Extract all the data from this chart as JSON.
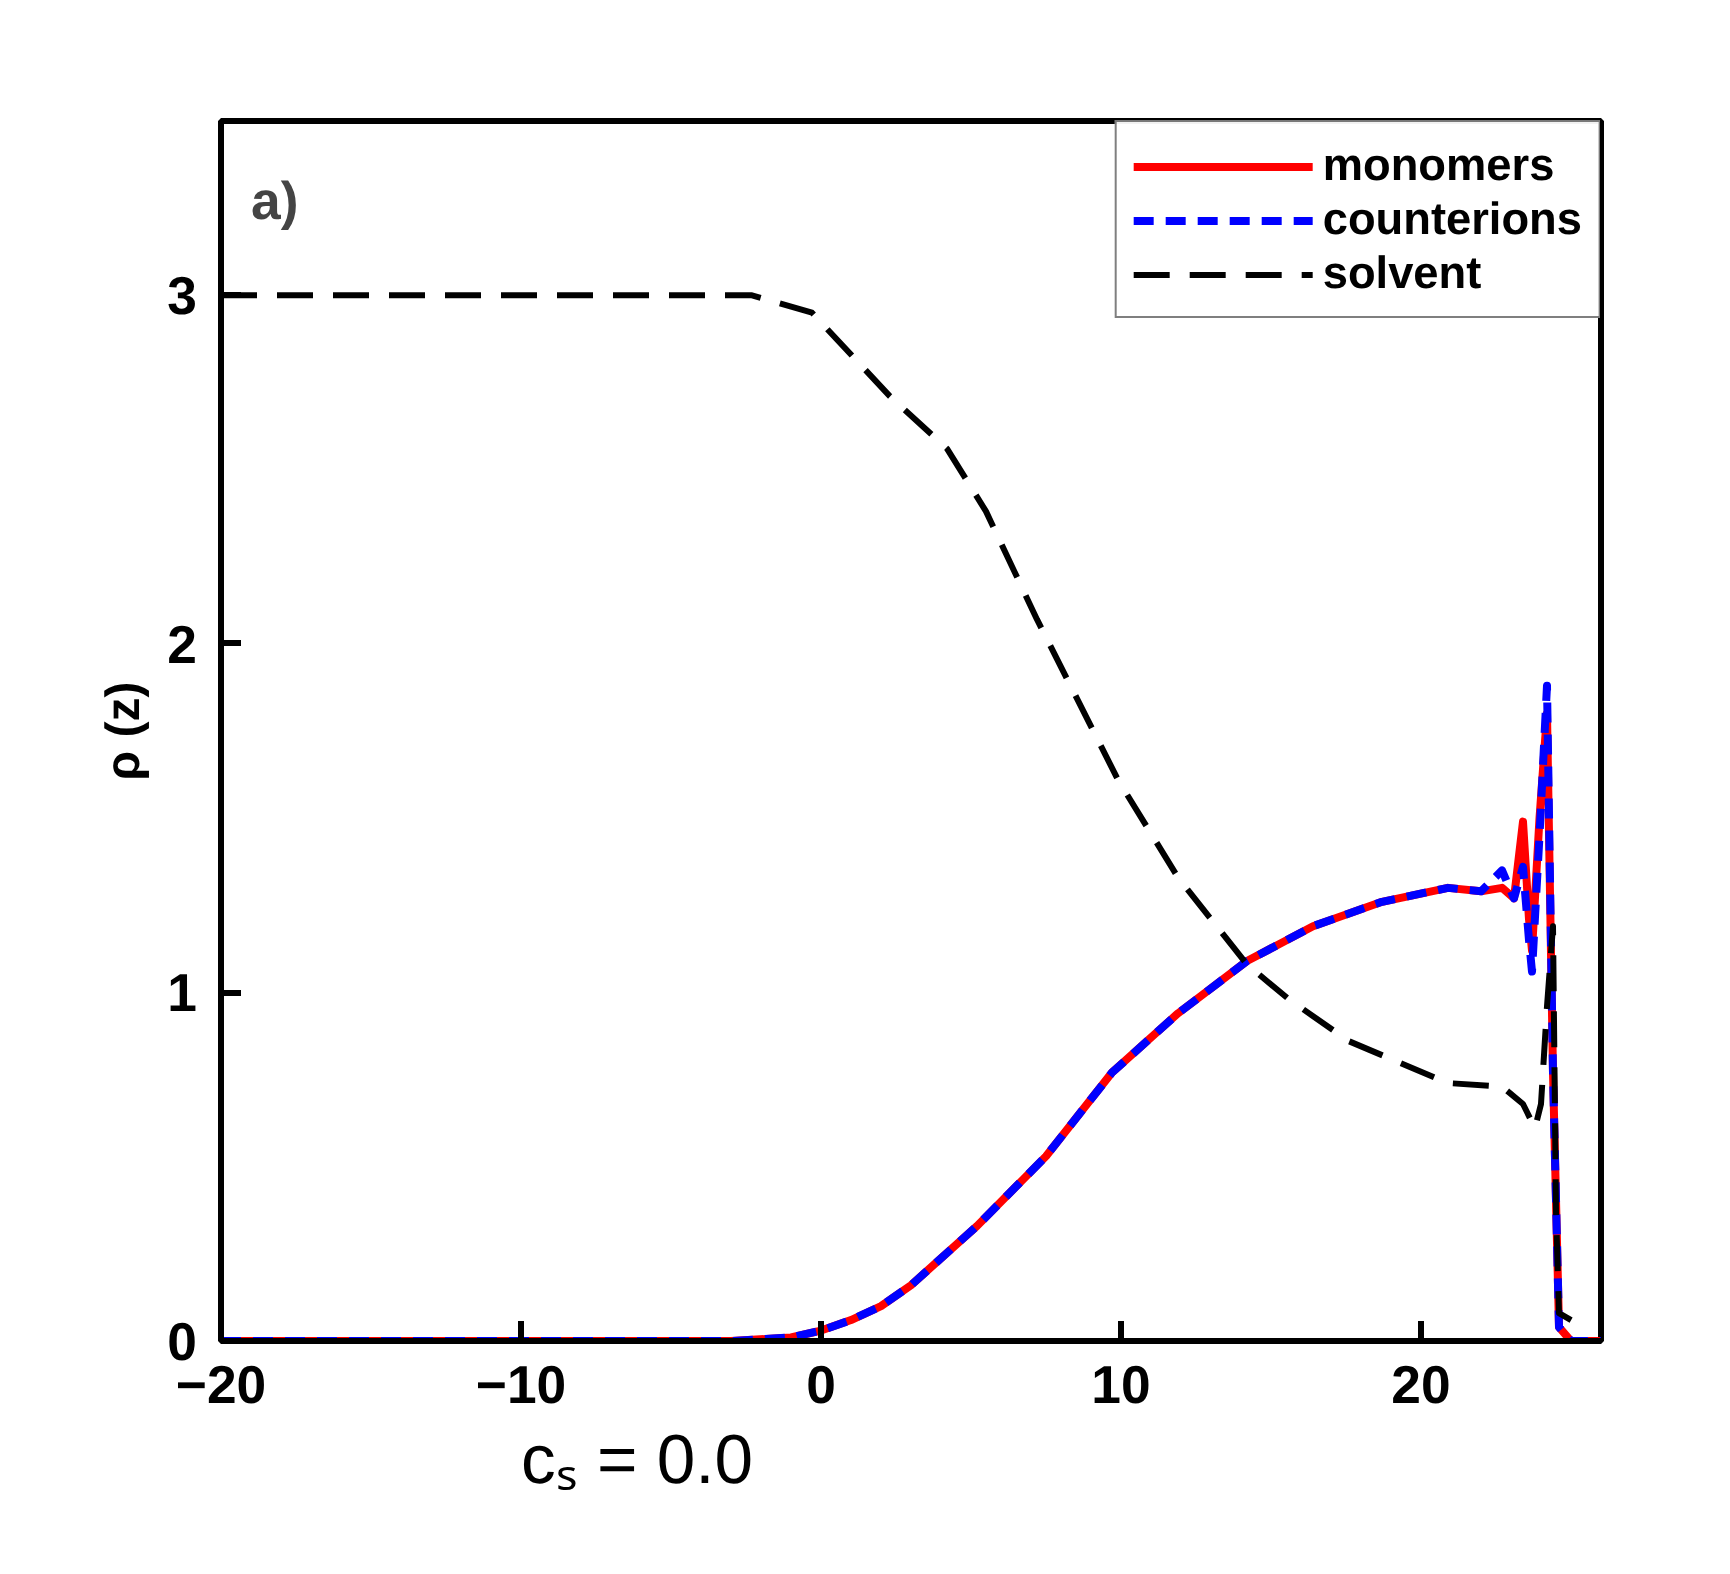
{
  "chart_data": {
    "type": "line",
    "ylabel": "ρ (z)",
    "annotations": [
      "a)",
      "cₛ = 0.0"
    ],
    "xlim": [
      -20,
      26
    ],
    "ylim": [
      0,
      3.5
    ],
    "xticks": [
      -20,
      -10,
      0,
      10,
      20
    ],
    "yticks": [
      0,
      1,
      2,
      3
    ],
    "grid": false,
    "legend": "top right",
    "series": [
      {
        "name": "monomers",
        "color": "#ff0000",
        "line_style": "solid",
        "x": [
          -20,
          -10,
          -3,
          -1,
          0,
          1,
          2,
          3,
          5.2,
          7.5,
          9.7,
          11.9,
          14.2,
          16.4,
          18.7,
          20.9,
          22.0,
          22.7,
          23.1,
          23.4,
          23.6,
          23.7,
          23.95,
          24.2,
          24.4,
          24.6,
          25,
          26
        ],
        "values": [
          0,
          0,
          0,
          0.01,
          0.03,
          0.06,
          0.1,
          0.16,
          0.33,
          0.53,
          0.77,
          0.94,
          1.09,
          1.19,
          1.26,
          1.3,
          1.29,
          1.3,
          1.27,
          1.49,
          1.21,
          1.12,
          1.5,
          1.8,
          0.77,
          0.04,
          0,
          0
        ]
      },
      {
        "name": "counterions",
        "color": "#0000ff",
        "line_style": "dashed",
        "x": [
          -20,
          -10,
          -3,
          -1,
          0,
          1,
          2,
          3,
          5.2,
          7.5,
          9.7,
          11.9,
          14.2,
          16.4,
          18.7,
          20.9,
          22.0,
          22.7,
          23.1,
          23.4,
          23.6,
          23.7,
          23.95,
          24.2,
          24.4,
          24.6,
          25,
          26
        ],
        "values": [
          0,
          0,
          0,
          0.01,
          0.03,
          0.06,
          0.1,
          0.16,
          0.33,
          0.53,
          0.77,
          0.94,
          1.09,
          1.19,
          1.26,
          1.3,
          1.29,
          1.35,
          1.27,
          1.36,
          1.15,
          1.06,
          1.45,
          1.88,
          0.77,
          0.04,
          0,
          0
        ]
      },
      {
        "name": "solvent",
        "color": "#000000",
        "line_style": "dashed",
        "x": [
          -20,
          -10,
          -2.3,
          -0.3,
          2.3,
          4.2,
          5.5,
          7.2,
          9.9,
          11.9,
          14.2,
          15.6,
          17.6,
          20.9,
          22.7,
          23.4,
          23.8,
          24.0,
          24.2,
          24.4,
          24.5,
          24.6,
          25.2
        ],
        "values": [
          3.0,
          3.0,
          3.0,
          2.95,
          2.71,
          2.56,
          2.38,
          2.07,
          1.61,
          1.33,
          1.08,
          0.98,
          0.86,
          0.74,
          0.73,
          0.68,
          0.61,
          0.68,
          0.96,
          1.19,
          0.37,
          0.08,
          0.05
        ]
      }
    ]
  }
}
